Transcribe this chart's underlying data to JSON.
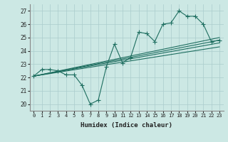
{
  "xlabel": "Humidex (Indice chaleur)",
  "background_color": "#cce8e4",
  "grid_color": "#aacccc",
  "line_color": "#1e6e60",
  "xlim": [
    -0.5,
    23.5
  ],
  "ylim": [
    19.5,
    27.5
  ],
  "xticks": [
    0,
    1,
    2,
    3,
    4,
    5,
    6,
    7,
    8,
    9,
    10,
    11,
    12,
    13,
    14,
    15,
    16,
    17,
    18,
    19,
    20,
    21,
    22,
    23
  ],
  "yticks": [
    20,
    21,
    22,
    23,
    24,
    25,
    26,
    27
  ],
  "main_series": {
    "x": [
      0,
      1,
      2,
      3,
      4,
      5,
      6,
      7,
      8,
      9,
      10,
      11,
      12,
      13,
      14,
      15,
      16,
      17,
      18,
      19,
      20,
      21,
      22,
      23
    ],
    "y": [
      22.1,
      22.6,
      22.6,
      22.5,
      22.2,
      22.2,
      21.4,
      20.0,
      20.3,
      22.8,
      24.5,
      23.1,
      23.5,
      25.4,
      25.3,
      24.7,
      26.0,
      26.1,
      27.0,
      26.6,
      26.6,
      26.0,
      24.7,
      24.8
    ]
  },
  "trend_lines": [
    {
      "x": [
        0,
        23
      ],
      "y": [
        22.1,
        25.0
      ]
    },
    {
      "x": [
        0,
        23
      ],
      "y": [
        22.1,
        24.8
      ]
    },
    {
      "x": [
        0,
        23
      ],
      "y": [
        22.1,
        24.6
      ]
    },
    {
      "x": [
        0,
        23
      ],
      "y": [
        22.1,
        24.3
      ]
    }
  ],
  "marker": "+",
  "markersize": 4,
  "linewidth": 0.8
}
